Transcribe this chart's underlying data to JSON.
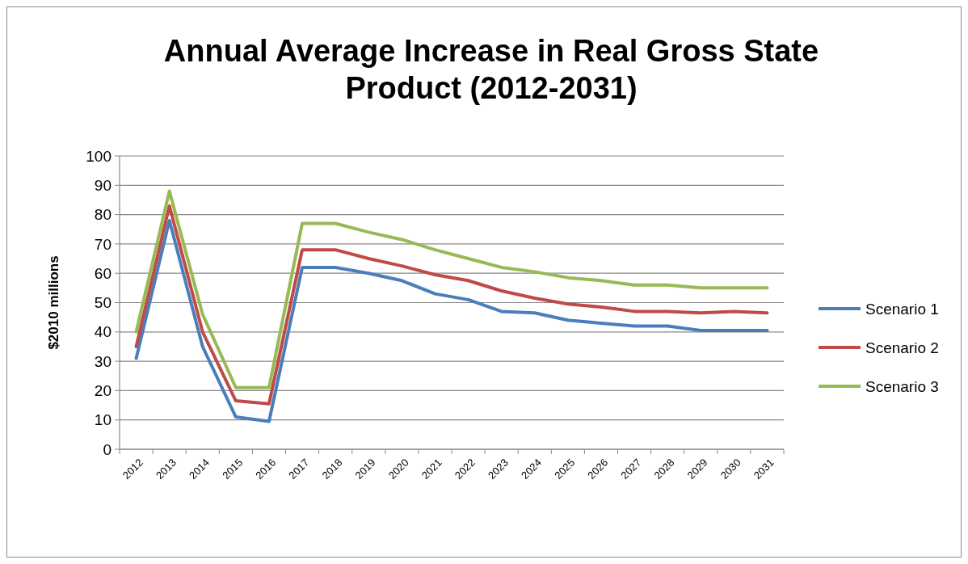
{
  "chart_data": {
    "type": "line",
    "title": "Annual Average Increase in Real Gross State Product (2012-2031)",
    "ylabel": "$2010 millions",
    "categories": [
      "2012",
      "2013",
      "2014",
      "2015",
      "2016",
      "2017",
      "2018",
      "2019",
      "2020",
      "2021",
      "2022",
      "2023",
      "2024",
      "2025",
      "2026",
      "2027",
      "2028",
      "2029",
      "2030",
      "2031"
    ],
    "series": [
      {
        "name": "Scenario 1",
        "color": "#4a7ebb",
        "values": [
          31,
          78,
          35,
          11,
          9.5,
          62,
          62,
          60,
          57.5,
          53,
          51,
          47,
          46.5,
          44,
          43,
          42,
          42,
          40.5,
          40.5,
          40.5
        ]
      },
      {
        "name": "Scenario 2",
        "color": "#be4b48",
        "values": [
          35,
          83,
          40,
          16.5,
          15.5,
          68,
          68,
          65,
          62.5,
          59.5,
          57.5,
          54,
          51.5,
          49.5,
          48.5,
          47,
          47,
          46.5,
          47,
          46.5
        ]
      },
      {
        "name": "Scenario 3",
        "color": "#98b954",
        "values": [
          40,
          88,
          46,
          21,
          21,
          77,
          77,
          74,
          71.5,
          68,
          65,
          62,
          60.5,
          58.5,
          57.5,
          56,
          56,
          55,
          55,
          55
        ]
      }
    ],
    "ylim": [
      0,
      100
    ],
    "yticks": [
      0,
      10,
      20,
      30,
      40,
      50,
      60,
      70,
      80,
      90,
      100
    ],
    "grid": "y",
    "legend": "right",
    "marker": "none",
    "line_style": "solid"
  }
}
